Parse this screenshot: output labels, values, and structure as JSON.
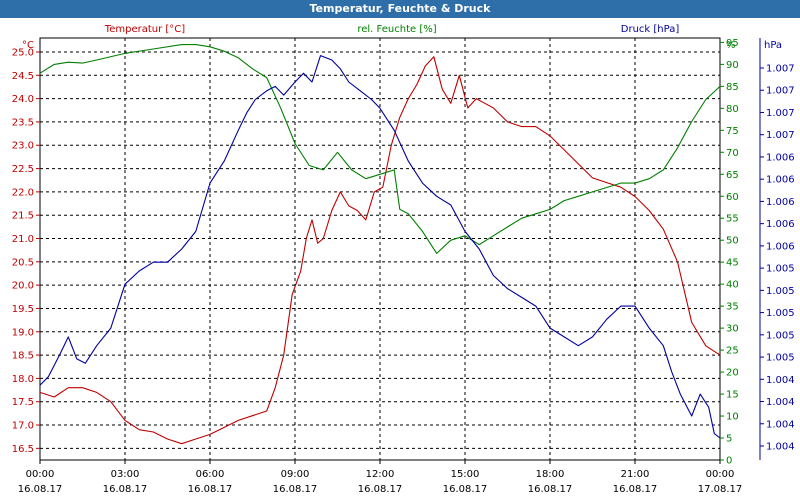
{
  "chart_data": {
    "type": "line",
    "title": "Temperatur, Feuchte & Druck",
    "x_ticks": [
      {
        "time": "00:00",
        "date": "16.08.17"
      },
      {
        "time": "03:00",
        "date": "16.08.17"
      },
      {
        "time": "06:00",
        "date": "16.08.17"
      },
      {
        "time": "09:00",
        "date": "16.08.17"
      },
      {
        "time": "12:00",
        "date": "16.08.17"
      },
      {
        "time": "15:00",
        "date": "16.08.17"
      },
      {
        "time": "18:00",
        "date": "16.08.17"
      },
      {
        "time": "21:00",
        "date": "16.08.17"
      },
      {
        "time": "00:00",
        "date": "17.08.17"
      }
    ],
    "xlim_hours": [
      0,
      24
    ],
    "grid": true,
    "axes": {
      "temperature": {
        "unit": "°C",
        "ylim": [
          16.25,
          25.3
        ],
        "ticks": [
          "16.5",
          "17.0",
          "17.5",
          "18.0",
          "18.5",
          "19.0",
          "19.5",
          "20.0",
          "20.5",
          "21.0",
          "21.5",
          "22.0",
          "22.5",
          "23.0",
          "23.5",
          "24.0",
          "24.5",
          "25.0"
        ],
        "color": "#c00000"
      },
      "humidity": {
        "unit": "%",
        "ylim": [
          0,
          96
        ],
        "ticks": [
          "0",
          "5",
          "10",
          "15",
          "20",
          "25",
          "30",
          "35",
          "40",
          "45",
          "50",
          "55",
          "60",
          "65",
          "70",
          "75",
          "80",
          "85",
          "90",
          "95"
        ],
        "color": "#008000"
      },
      "pressure": {
        "unit": "hPa",
        "tick_labels": [
          "1.004",
          "1.004",
          "1.004",
          "1.004",
          "1.005",
          "1.005",
          "1.005",
          "1.005",
          "1.005",
          "1.006",
          "1.006",
          "1.006",
          "1.006",
          "1.006",
          "1.007",
          "1.007",
          "1.007",
          "1.007"
        ],
        "color": "#0000a0"
      }
    },
    "series": [
      {
        "name": "Temperatur [°C]",
        "axis": "temperature",
        "color": "#c00000",
        "points": [
          [
            0,
            17.7
          ],
          [
            0.5,
            17.6
          ],
          [
            1,
            17.8
          ],
          [
            1.5,
            17.8
          ],
          [
            2,
            17.7
          ],
          [
            2.5,
            17.5
          ],
          [
            3,
            17.1
          ],
          [
            3.5,
            16.9
          ],
          [
            4,
            16.85
          ],
          [
            4.5,
            16.7
          ],
          [
            5,
            16.6
          ],
          [
            5.5,
            16.7
          ],
          [
            6,
            16.8
          ],
          [
            6.5,
            16.95
          ],
          [
            7,
            17.1
          ],
          [
            7.5,
            17.2
          ],
          [
            8,
            17.3
          ],
          [
            8.3,
            17.8
          ],
          [
            8.6,
            18.5
          ],
          [
            8.9,
            19.8
          ],
          [
            9.2,
            20.3
          ],
          [
            9.4,
            21.0
          ],
          [
            9.6,
            21.4
          ],
          [
            9.8,
            20.9
          ],
          [
            10,
            21.0
          ],
          [
            10.3,
            21.6
          ],
          [
            10.6,
            22.0
          ],
          [
            10.9,
            21.7
          ],
          [
            11.2,
            21.6
          ],
          [
            11.5,
            21.4
          ],
          [
            11.8,
            22.0
          ],
          [
            12.1,
            22.1
          ],
          [
            12.4,
            23.0
          ],
          [
            12.7,
            23.6
          ],
          [
            13,
            24.0
          ],
          [
            13.3,
            24.3
          ],
          [
            13.6,
            24.7
          ],
          [
            13.9,
            24.9
          ],
          [
            14.2,
            24.2
          ],
          [
            14.5,
            23.9
          ],
          [
            14.8,
            24.5
          ],
          [
            15.1,
            23.8
          ],
          [
            15.4,
            24.0
          ],
          [
            15.7,
            23.9
          ],
          [
            16,
            23.8
          ],
          [
            16.5,
            23.5
          ],
          [
            17,
            23.4
          ],
          [
            17.5,
            23.4
          ],
          [
            18,
            23.2
          ],
          [
            18.5,
            22.9
          ],
          [
            19,
            22.6
          ],
          [
            19.5,
            22.3
          ],
          [
            20,
            22.2
          ],
          [
            20.5,
            22.1
          ],
          [
            21,
            21.9
          ],
          [
            21.5,
            21.6
          ],
          [
            22,
            21.2
          ],
          [
            22.5,
            20.5
          ],
          [
            23,
            19.2
          ],
          [
            23.5,
            18.7
          ],
          [
            24,
            18.5
          ]
        ]
      },
      {
        "name": "rel. Feuchte [%]",
        "axis": "humidity",
        "color": "#008000",
        "points": [
          [
            0,
            88
          ],
          [
            0.5,
            90
          ],
          [
            1,
            90.5
          ],
          [
            1.5,
            90.3
          ],
          [
            2,
            91
          ],
          [
            3,
            92.5
          ],
          [
            4,
            93.5
          ],
          [
            5,
            94.5
          ],
          [
            5.5,
            94.5
          ],
          [
            6,
            94
          ],
          [
            6.5,
            93
          ],
          [
            7,
            91.5
          ],
          [
            7.5,
            89
          ],
          [
            8,
            87
          ],
          [
            8.5,
            80
          ],
          [
            9,
            72
          ],
          [
            9.5,
            67
          ],
          [
            10,
            66
          ],
          [
            10.5,
            70
          ],
          [
            11,
            66
          ],
          [
            11.5,
            64
          ],
          [
            12,
            65
          ],
          [
            12.5,
            66
          ],
          [
            12.7,
            57
          ],
          [
            13,
            56
          ],
          [
            13.5,
            52
          ],
          [
            14,
            47
          ],
          [
            14.5,
            50
          ],
          [
            15,
            51
          ],
          [
            15.5,
            49
          ],
          [
            16,
            51
          ],
          [
            16.5,
            53
          ],
          [
            17,
            55
          ],
          [
            17.5,
            56
          ],
          [
            18,
            57
          ],
          [
            18.5,
            59
          ],
          [
            19,
            60
          ],
          [
            19.5,
            61
          ],
          [
            20,
            62
          ],
          [
            20.5,
            63
          ],
          [
            21,
            63
          ],
          [
            21.5,
            64
          ],
          [
            22,
            66
          ],
          [
            22.5,
            71
          ],
          [
            23,
            77
          ],
          [
            23.5,
            82
          ],
          [
            24,
            85
          ]
        ]
      },
      {
        "name": "Druck [hPa]",
        "axis": "pressure",
        "color": "#0000a0",
        "points": [
          [
            0,
            17
          ],
          [
            0.3,
            19
          ],
          [
            0.7,
            24
          ],
          [
            1,
            28
          ],
          [
            1.3,
            23
          ],
          [
            1.6,
            22
          ],
          [
            2,
            26
          ],
          [
            2.5,
            30
          ],
          [
            3,
            40
          ],
          [
            3.5,
            43
          ],
          [
            4,
            45
          ],
          [
            4.5,
            45
          ],
          [
            5,
            48
          ],
          [
            5.5,
            52
          ],
          [
            6,
            63
          ],
          [
            6.5,
            68
          ],
          [
            7,
            75
          ],
          [
            7.3,
            79
          ],
          [
            7.6,
            82
          ],
          [
            8,
            84
          ],
          [
            8.3,
            85
          ],
          [
            8.6,
            83
          ],
          [
            9,
            86
          ],
          [
            9.3,
            88
          ],
          [
            9.6,
            86
          ],
          [
            9.9,
            92
          ],
          [
            10.3,
            91
          ],
          [
            10.6,
            89
          ],
          [
            10.9,
            86
          ],
          [
            11.3,
            84
          ],
          [
            11.7,
            82
          ],
          [
            12,
            80
          ],
          [
            12.5,
            75
          ],
          [
            13,
            68
          ],
          [
            13.5,
            63
          ],
          [
            14,
            60
          ],
          [
            14.5,
            58
          ],
          [
            15,
            52
          ],
          [
            15.5,
            48
          ],
          [
            16,
            42
          ],
          [
            16.5,
            39
          ],
          [
            17,
            37
          ],
          [
            17.5,
            35
          ],
          [
            18,
            30
          ],
          [
            18.5,
            28
          ],
          [
            19,
            26
          ],
          [
            19.5,
            28
          ],
          [
            20,
            32
          ],
          [
            20.5,
            35
          ],
          [
            21,
            35
          ],
          [
            21.5,
            30
          ],
          [
            22,
            26
          ],
          [
            22.3,
            20
          ],
          [
            22.6,
            15
          ],
          [
            23,
            10
          ],
          [
            23.3,
            15
          ],
          [
            23.6,
            12
          ],
          [
            23.8,
            6
          ],
          [
            24,
            5
          ]
        ]
      }
    ]
  }
}
